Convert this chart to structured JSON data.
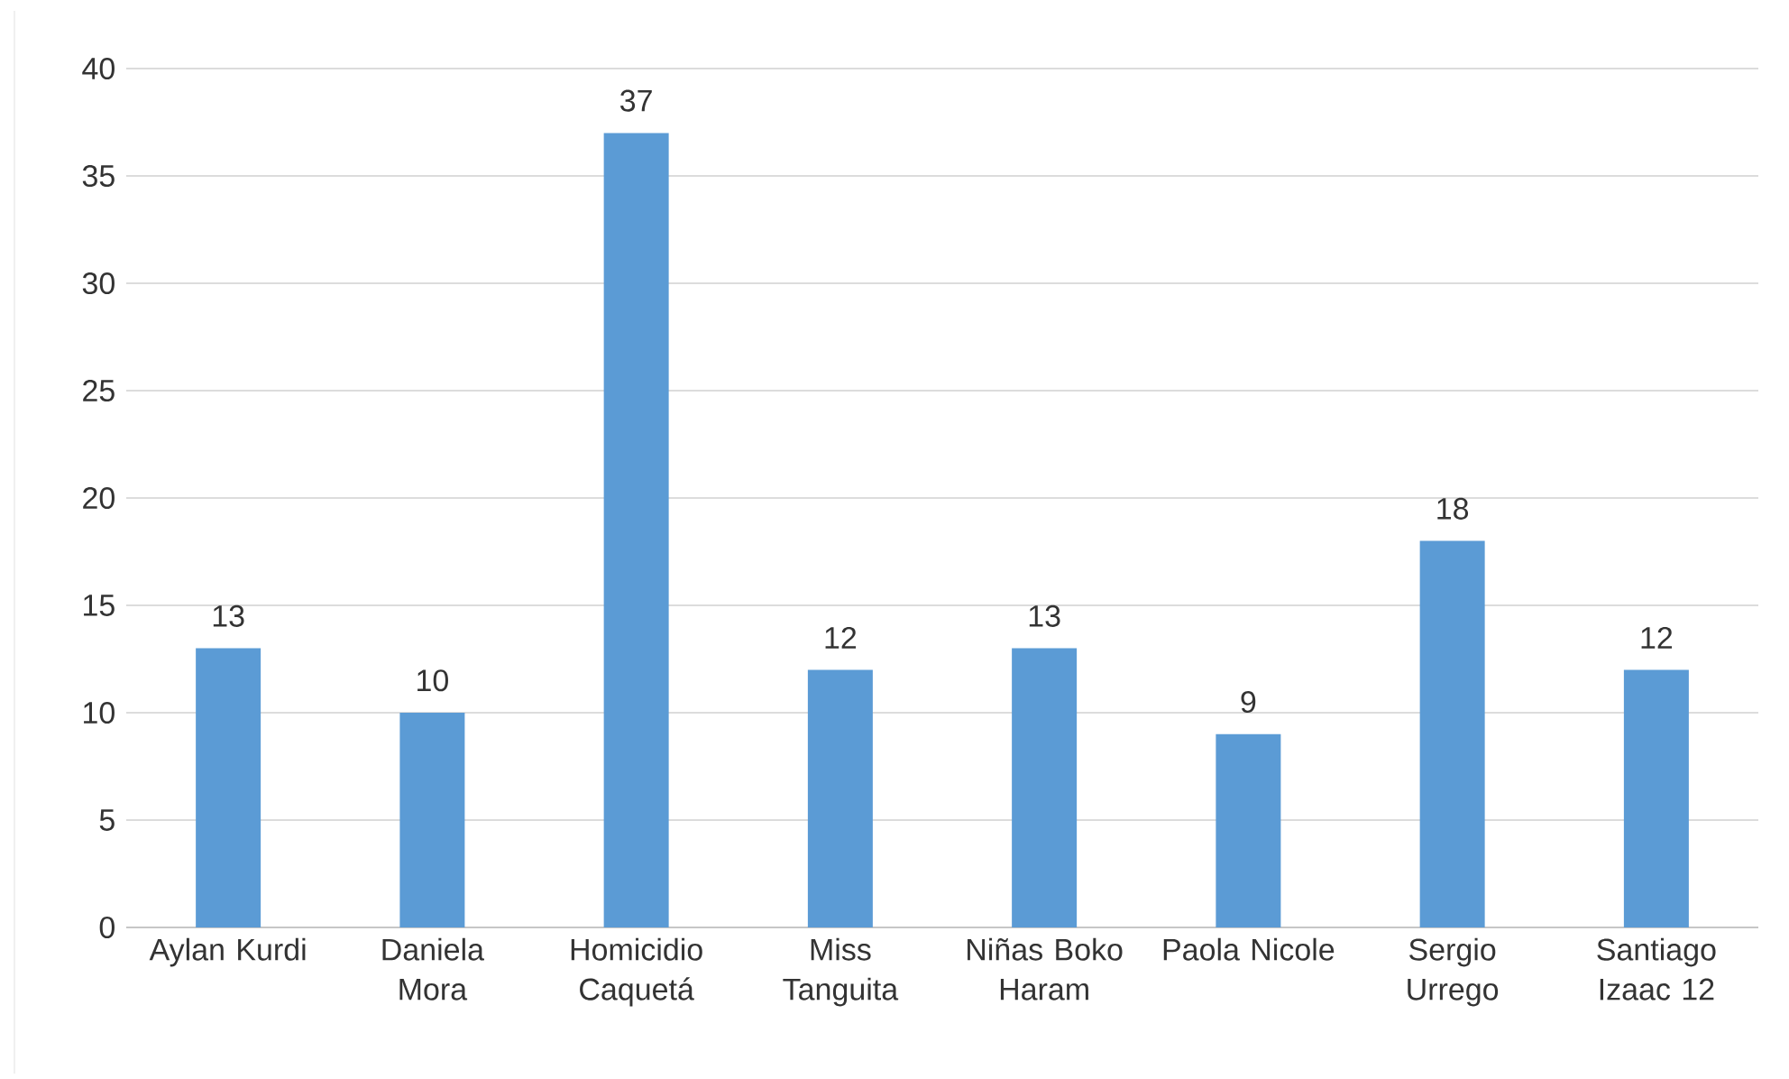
{
  "chart_data": {
    "type": "bar",
    "categories": [
      "Aylan Kurdi",
      "Daniela Mora",
      "Homicidio Caquetá",
      "Miss Tanguita",
      "Niñas Boko Haram",
      "Paola Nicole",
      "Sergio Urrego",
      "Santiago Izaac 12"
    ],
    "values": [
      13,
      10,
      37,
      12,
      13,
      9,
      18,
      12
    ],
    "color": "#5b9bd5",
    "ylim": [
      0,
      40
    ],
    "yticks": [
      0,
      5,
      10,
      15,
      20,
      25,
      30,
      35,
      40
    ],
    "grid": "y",
    "data_labels": true
  }
}
